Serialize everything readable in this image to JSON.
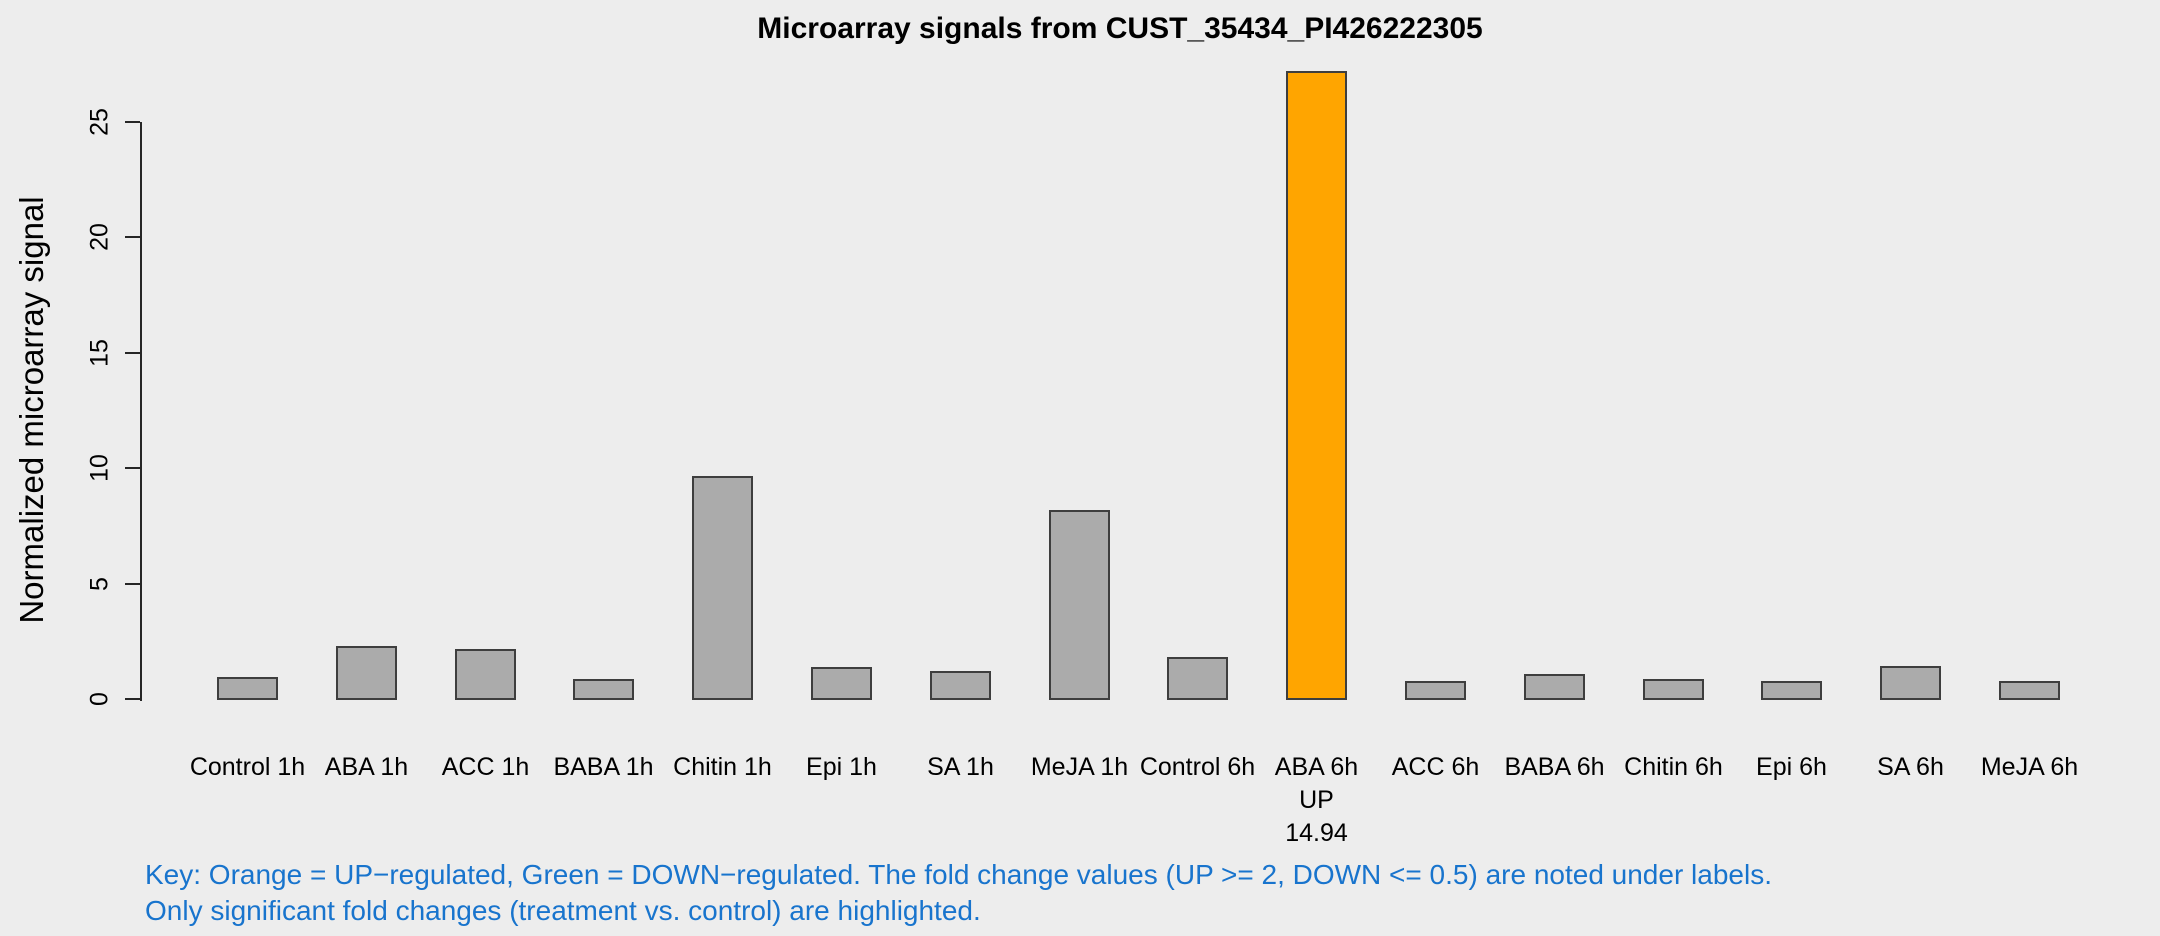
{
  "chart_data": {
    "type": "bar",
    "title": "Microarray signals from CUST_35434_PI426222305",
    "ylabel": "Normalized microarray signal",
    "xlabel": "",
    "categories": [
      "Control 1h",
      "ABA 1h",
      "ACC 1h",
      "BABA 1h",
      "Chitin 1h",
      "Epi 1h",
      "SA 1h",
      "MeJA 1h",
      "Control 6h",
      "ABA 6h",
      "ACC 6h",
      "BABA 6h",
      "Chitin 6h",
      "Epi 6h",
      "SA 6h",
      "MeJA 6h"
    ],
    "values": [
      0.95,
      2.3,
      2.15,
      0.85,
      9.65,
      1.4,
      1.2,
      8.2,
      1.82,
      27.2,
      0.8,
      1.1,
      0.85,
      0.8,
      1.45,
      0.8
    ],
    "bar_colors": [
      "#ABABAB",
      "#ABABAB",
      "#ABABAB",
      "#ABABAB",
      "#ABABAB",
      "#ABABAB",
      "#ABABAB",
      "#ABABAB",
      "#ABABAB",
      "#FFA500",
      "#ABABAB",
      "#ABABAB",
      "#ABABAB",
      "#ABABAB",
      "#ABABAB",
      "#ABABAB"
    ],
    "annotations": [
      {
        "index": 9,
        "lines": [
          "UP",
          "14.94"
        ]
      }
    ],
    "yticks": [
      0,
      5,
      10,
      15,
      20,
      25
    ],
    "ylim": [
      0,
      27.5
    ],
    "grid": false,
    "legend_position": "none"
  },
  "key": {
    "line1": "Key: Orange = UP−regulated, Green = DOWN−regulated. The fold change values (UP >= 2, DOWN <= 0.5) are noted under labels.",
    "line2": "Only significant fold changes (treatment vs. control) are highlighted."
  },
  "colors": {
    "background": "#EDEDED",
    "bar_default": "#ABABAB",
    "bar_up_regulated": "#FFA500",
    "bar_border": "#3E3E3E",
    "axis": "#262626",
    "key_text": "#1874CD",
    "title_text": "#000000"
  }
}
